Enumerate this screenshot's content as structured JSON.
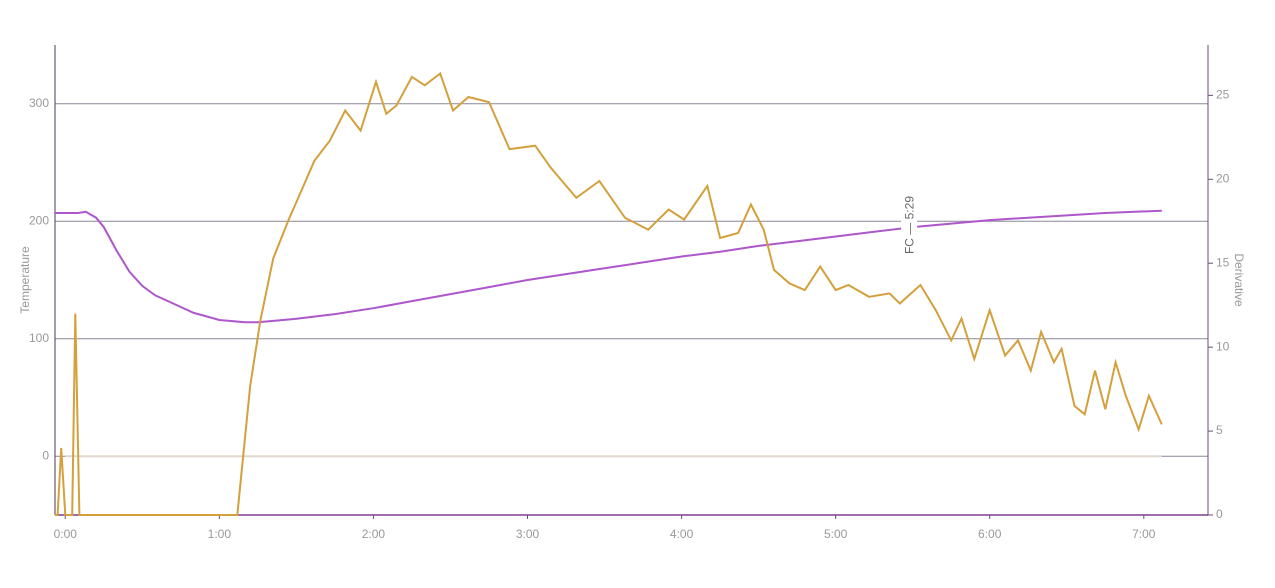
{
  "chart_data": {
    "type": "line",
    "y_label": "Temperature",
    "y2_label": "Derivative",
    "xlim": [
      -4,
      445
    ],
    "ylim": [
      -50,
      350
    ],
    "y2lim": [
      0,
      28
    ],
    "xticks": [
      {
        "value": 0,
        "label": "0:00"
      },
      {
        "value": 60,
        "label": "1:00"
      },
      {
        "value": 120,
        "label": "2:00"
      },
      {
        "value": 180,
        "label": "3:00"
      },
      {
        "value": 240,
        "label": "4:00"
      },
      {
        "value": 300,
        "label": "5:00"
      },
      {
        "value": 360,
        "label": "6:00"
      },
      {
        "value": 420,
        "label": "7:00"
      }
    ],
    "yticks": [
      0,
      100,
      200,
      300
    ],
    "y2ticks": [
      0,
      5,
      10,
      15,
      20,
      25
    ],
    "grid": true,
    "annotations": [
      {
        "text": "FC — 5:29",
        "x": 329
      }
    ],
    "series": [
      {
        "color": "#e0d8cc",
        "x": [
          0,
          427
        ],
        "values": [
          0,
          0
        ]
      },
      {
        "color": "#ad57cb",
        "x": [
          -4,
          0,
          5,
          8,
          12,
          15,
          20,
          25,
          30,
          35,
          40,
          45,
          50,
          55,
          60,
          65,
          70,
          75,
          80,
          90,
          105,
          120,
          135,
          150,
          165,
          180,
          195,
          210,
          225,
          240,
          255,
          270,
          285,
          300,
          315,
          330,
          345,
          360,
          375,
          390,
          405,
          427
        ],
        "values": [
          207,
          207,
          207,
          208,
          203,
          195,
          175,
          157,
          145,
          137,
          132,
          127,
          122,
          119,
          116,
          115,
          114,
          114,
          115,
          117,
          121,
          126,
          132,
          138,
          144,
          150,
          155,
          160,
          165,
          170,
          174,
          179,
          183,
          187,
          191,
          195,
          198,
          201,
          203,
          205,
          207,
          209
        ]
      },
      {
        "color": "#d4a03c",
        "axis": "y2",
        "x": [
          -4,
          -3,
          -1.6,
          0,
          2.7,
          3.9,
          5.5,
          67,
          72,
          76,
          81,
          87,
          91,
          97,
          103,
          109,
          115,
          121,
          125,
          129,
          135,
          140,
          146,
          151,
          157,
          165,
          173,
          183,
          189,
          199,
          208,
          218,
          227,
          235,
          241,
          250,
          255,
          262,
          267,
          272,
          276,
          282,
          288,
          294,
          300,
          305,
          313,
          321,
          325,
          333,
          339,
          345,
          349,
          354,
          360,
          366,
          371,
          376,
          380,
          385,
          388,
          393,
          397,
          401,
          405,
          409,
          413,
          418,
          422,
          427
        ],
        "values": [
          0,
          0,
          4.0,
          0,
          0,
          12.0,
          0,
          0,
          7.7,
          11.6,
          15.3,
          17.6,
          19.0,
          21.1,
          22.3,
          24.1,
          22.9,
          25.8,
          23.9,
          24.4,
          26.1,
          25.6,
          26.3,
          24.1,
          24.9,
          24.6,
          21.8,
          22.0,
          20.7,
          18.9,
          19.9,
          17.7,
          17.0,
          18.2,
          17.6,
          19.6,
          16.5,
          16.8,
          18.5,
          17.0,
          14.6,
          13.8,
          13.4,
          14.8,
          13.4,
          13.7,
          13.0,
          13.2,
          12.6,
          13.7,
          12.2,
          10.4,
          11.7,
          9.3,
          12.2,
          9.5,
          10.4,
          8.6,
          10.9,
          9.1,
          9.9,
          6.5,
          6.0,
          8.6,
          6.3,
          9.1,
          7.1,
          5.1,
          7.1,
          5.4
        ]
      }
    ]
  }
}
